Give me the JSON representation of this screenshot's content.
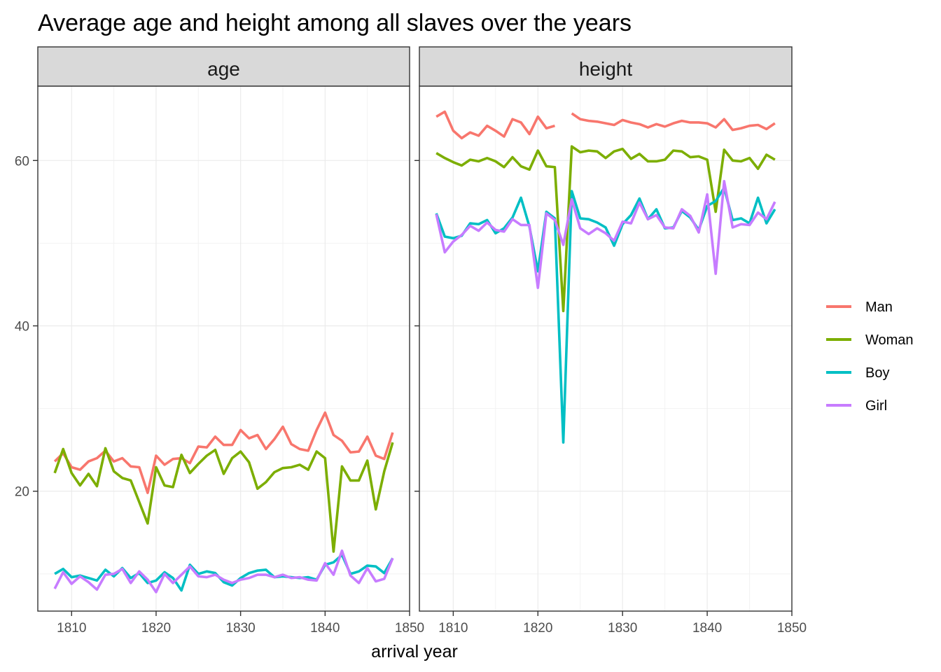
{
  "chart_data": {
    "type": "line",
    "title": "Average age and height among all slaves over the years",
    "xlabel": "arrival year",
    "ylabel": "",
    "xlim": [
      1806,
      1850
    ],
    "ylim": [
      5.5,
      69
    ],
    "x_ticks": [
      1810,
      1820,
      1830,
      1840,
      1850
    ],
    "y_ticks": [
      20,
      40,
      60
    ],
    "grid": true,
    "legend_position": "right",
    "facets": [
      {
        "label": "age",
        "series": [
          {
            "name": "Man",
            "color": "#F8766D",
            "x": [
              1808,
              1809,
              1810,
              1811,
              1812,
              1813,
              1814,
              1815,
              1816,
              1817,
              1818,
              1819,
              1820,
              1821,
              1822,
              1823,
              1824,
              1825,
              1826,
              1827,
              1828,
              1829,
              1830,
              1831,
              1832,
              1833,
              1834,
              1835,
              1836,
              1837,
              1838,
              1839,
              1840,
              1841,
              1842,
              1843,
              1844,
              1845,
              1846,
              1847,
              1848
            ],
            "y": [
              23.6,
              24.6,
              22.9,
              22.6,
              23.6,
              24.0,
              24.9,
              23.6,
              24.0,
              23.0,
              22.9,
              19.8,
              24.3,
              23.2,
              23.9,
              24.0,
              23.4,
              25.4,
              25.3,
              26.6,
              25.6,
              25.6,
              27.4,
              26.4,
              26.8,
              25.1,
              26.3,
              27.8,
              25.7,
              25.1,
              24.9,
              27.4,
              29.5,
              26.8,
              26.1,
              24.7,
              24.8,
              26.6,
              24.3,
              23.9,
              27.1
            ]
          },
          {
            "name": "Woman",
            "color": "#7CAE00",
            "x": [
              1808,
              1809,
              1810,
              1811,
              1812,
              1813,
              1814,
              1815,
              1816,
              1817,
              1818,
              1819,
              1820,
              1821,
              1822,
              1823,
              1824,
              1825,
              1826,
              1827,
              1828,
              1829,
              1830,
              1831,
              1832,
              1833,
              1834,
              1835,
              1836,
              1837,
              1838,
              1839,
              1840,
              1841,
              1842,
              1843,
              1844,
              1845,
              1846,
              1847,
              1848
            ],
            "y": [
              22.2,
              25.1,
              22.2,
              20.7,
              22.1,
              20.6,
              25.2,
              22.4,
              21.6,
              21.3,
              18.7,
              16.1,
              22.9,
              20.7,
              20.5,
              24.4,
              22.2,
              23.3,
              24.3,
              25.0,
              22.1,
              24.0,
              24.8,
              23.5,
              20.3,
              21.1,
              22.3,
              22.8,
              22.9,
              23.2,
              22.6,
              24.8,
              24.0,
              12.7,
              23.0,
              21.3,
              21.3,
              23.7,
              17.8,
              22.4,
              25.9
            ]
          },
          {
            "name": "Boy",
            "color": "#00BFC4",
            "x": [
              1808,
              1809,
              1810,
              1811,
              1812,
              1813,
              1814,
              1815,
              1816,
              1817,
              1818,
              1819,
              1820,
              1821,
              1822,
              1823,
              1824,
              1825,
              1826,
              1827,
              1828,
              1829,
              1830,
              1831,
              1832,
              1833,
              1834,
              1835,
              1836,
              1837,
              1838,
              1839,
              1840,
              1841,
              1842,
              1843,
              1844,
              1845,
              1846,
              1847,
              1848
            ],
            "y": [
              10.0,
              10.6,
              9.6,
              9.8,
              9.5,
              9.2,
              10.5,
              9.7,
              10.7,
              9.5,
              10.1,
              8.9,
              9.2,
              10.2,
              9.5,
              8.0,
              11.1,
              10.0,
              10.3,
              10.1,
              9.0,
              8.6,
              9.5,
              10.1,
              10.4,
              10.5,
              9.6,
              9.7,
              9.6,
              9.5,
              9.6,
              9.3,
              11.1,
              11.4,
              12.3,
              10.0,
              10.3,
              11.0,
              10.9,
              10.1,
              11.9
            ]
          },
          {
            "name": "Girl",
            "color": "#C77CFF",
            "x": [
              1808,
              1809,
              1810,
              1811,
              1812,
              1813,
              1814,
              1815,
              1816,
              1817,
              1818,
              1819,
              1820,
              1821,
              1822,
              1823,
              1824,
              1825,
              1826,
              1827,
              1828,
              1829,
              1830,
              1831,
              1832,
              1833,
              1834,
              1835,
              1836,
              1837,
              1838,
              1839,
              1840,
              1841,
              1842,
              1843,
              1844,
              1845,
              1846,
              1847,
              1848
            ],
            "y": [
              8.2,
              10.2,
              8.8,
              9.7,
              9.0,
              8.1,
              9.9,
              10.0,
              10.6,
              8.9,
              10.3,
              9.3,
              7.8,
              10.0,
              8.9,
              9.9,
              10.9,
              9.7,
              9.6,
              9.9,
              9.3,
              8.9,
              9.3,
              9.5,
              9.9,
              9.9,
              9.6,
              9.9,
              9.5,
              9.6,
              9.3,
              9.2,
              11.3,
              9.9,
              12.8,
              9.8,
              8.9,
              10.7,
              9.1,
              9.4,
              11.9
            ]
          }
        ]
      },
      {
        "label": "height",
        "series": [
          {
            "name": "Man",
            "color": "#F8766D",
            "x": [
              1808,
              1809,
              1810,
              1811,
              1812,
              1813,
              1814,
              1815,
              1816,
              1817,
              1818,
              1819,
              1820,
              1821,
              1822,
              1823,
              1824,
              1825,
              1826,
              1827,
              1828,
              1829,
              1830,
              1831,
              1832,
              1833,
              1834,
              1835,
              1836,
              1837,
              1838,
              1839,
              1840,
              1841,
              1842,
              1843,
              1844,
              1845,
              1846,
              1847,
              1848
            ],
            "y": [
              65.3,
              65.9,
              63.6,
              62.7,
              63.4,
              63.0,
              64.2,
              63.6,
              62.9,
              65.0,
              64.6,
              63.2,
              65.3,
              63.9,
              64.2,
              null,
              65.7,
              65.0,
              64.8,
              64.7,
              64.5,
              64.3,
              64.9,
              64.6,
              64.4,
              64.0,
              64.4,
              64.1,
              64.5,
              64.8,
              64.6,
              64.6,
              64.5,
              64.0,
              65.0,
              63.7,
              63.9,
              64.2,
              64.3,
              63.8,
              64.5
            ]
          },
          {
            "name": "Woman",
            "color": "#7CAE00",
            "x": [
              1808,
              1809,
              1810,
              1811,
              1812,
              1813,
              1814,
              1815,
              1816,
              1817,
              1818,
              1819,
              1820,
              1821,
              1822,
              1823,
              1824,
              1825,
              1826,
              1827,
              1828,
              1829,
              1830,
              1831,
              1832,
              1833,
              1834,
              1835,
              1836,
              1837,
              1838,
              1839,
              1840,
              1841,
              1842,
              1843,
              1844,
              1845,
              1846,
              1847,
              1848
            ],
            "y": [
              60.9,
              60.3,
              59.8,
              59.4,
              60.1,
              59.9,
              60.3,
              59.9,
              59.2,
              60.4,
              59.3,
              58.9,
              61.2,
              59.3,
              59.2,
              41.8,
              61.7,
              61.0,
              61.2,
              61.1,
              60.3,
              61.1,
              61.4,
              60.2,
              60.8,
              59.9,
              59.9,
              60.1,
              61.2,
              61.1,
              60.4,
              60.5,
              60.1,
              53.8,
              61.3,
              60.0,
              59.9,
              60.3,
              59.0,
              60.7,
              60.1
            ]
          },
          {
            "name": "Boy",
            "color": "#00BFC4",
            "x": [
              1808,
              1809,
              1810,
              1811,
              1812,
              1813,
              1814,
              1815,
              1816,
              1817,
              1818,
              1819,
              1820,
              1821,
              1822,
              1823,
              1824,
              1825,
              1826,
              1827,
              1828,
              1829,
              1830,
              1831,
              1832,
              1833,
              1834,
              1835,
              1836,
              1837,
              1838,
              1839,
              1840,
              1841,
              1842,
              1843,
              1844,
              1845,
              1846,
              1847,
              1848
            ],
            "y": [
              53.6,
              50.8,
              50.6,
              50.9,
              52.4,
              52.3,
              52.8,
              51.2,
              51.8,
              53.1,
              55.5,
              52.0,
              46.6,
              53.8,
              53.0,
              25.9,
              56.3,
              53.0,
              52.9,
              52.5,
              51.9,
              49.7,
              52.3,
              53.4,
              55.4,
              52.9,
              54.1,
              51.8,
              51.9,
              53.9,
              53.1,
              51.6,
              54.5,
              55.1,
              56.7,
              52.8,
              53.0,
              52.4,
              55.5,
              52.4,
              54.1
            ]
          },
          {
            "name": "Girl",
            "color": "#C77CFF",
            "x": [
              1808,
              1809,
              1810,
              1811,
              1812,
              1813,
              1814,
              1815,
              1816,
              1817,
              1818,
              1819,
              1820,
              1821,
              1822,
              1823,
              1824,
              1825,
              1826,
              1827,
              1828,
              1829,
              1830,
              1831,
              1832,
              1833,
              1834,
              1835,
              1836,
              1837,
              1838,
              1839,
              1840,
              1841,
              1842,
              1843,
              1844,
              1845,
              1846,
              1847,
              1848
            ],
            "y": [
              53.5,
              48.9,
              50.2,
              51.0,
              52.1,
              51.5,
              52.5,
              51.6,
              51.4,
              52.9,
              52.2,
              52.2,
              44.6,
              53.6,
              52.8,
              49.8,
              55.3,
              51.8,
              51.1,
              51.8,
              51.2,
              50.3,
              52.6,
              52.4,
              54.9,
              52.9,
              53.4,
              51.9,
              51.8,
              54.1,
              53.3,
              51.3,
              55.9,
              46.3,
              57.5,
              51.9,
              52.3,
              52.2,
              53.7,
              52.9,
              55.0
            ]
          }
        ]
      }
    ],
    "legend": [
      "Man",
      "Woman",
      "Boy",
      "Girl"
    ]
  }
}
